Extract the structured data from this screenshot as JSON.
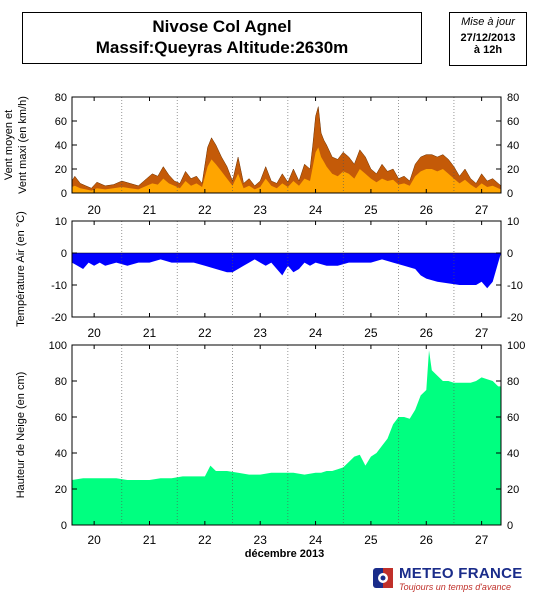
{
  "header": {
    "title_line1": "Nivose Col Agnel",
    "title_line2": "Massif:Queyras Altitude:2630m",
    "update_label": "Mise à jour",
    "update_date": "27/12/2013",
    "update_time": "à 12h"
  },
  "brand": {
    "name": "METEO FRANCE",
    "slogan": "Toujours un temps d'avance",
    "logo_icon": "meteo-france-logo-icon"
  },
  "colors": {
    "wind_max": "#c45a08",
    "wind_mean": "#ffa500",
    "temperature": "#0000ff",
    "snow": "#00ff80"
  },
  "chart_data": [
    {
      "type": "area",
      "ylabel": "Vent moyen et Vent maxi (en km/h)",
      "ylim": [
        0,
        80
      ],
      "yticks": [
        0,
        20,
        40,
        60,
        80
      ],
      "xlim": [
        19.6,
        27.35
      ],
      "x_ticks": [
        20,
        21,
        22,
        23,
        24,
        25,
        26,
        27
      ],
      "x_tick_labels": [
        "20",
        "21",
        "22",
        "23",
        "24",
        "25",
        "26",
        "27"
      ],
      "grid": "vertical dotted",
      "series": [
        {
          "role": "max",
          "x": [
            19.6,
            19.65,
            19.75,
            19.85,
            19.95,
            20.05,
            20.2,
            20.35,
            20.5,
            20.65,
            20.8,
            20.95,
            21.05,
            21.15,
            21.25,
            21.35,
            21.45,
            21.55,
            21.65,
            21.75,
            21.85,
            21.95,
            22.05,
            22.12,
            22.2,
            22.3,
            22.4,
            22.5,
            22.6,
            22.7,
            22.8,
            22.9,
            23.0,
            23.1,
            23.2,
            23.3,
            23.4,
            23.5,
            23.6,
            23.7,
            23.8,
            23.9,
            23.95,
            24.0,
            24.05,
            24.1,
            24.15,
            24.2,
            24.3,
            24.4,
            24.5,
            24.6,
            24.7,
            24.8,
            24.9,
            25.0,
            25.1,
            25.2,
            25.3,
            25.4,
            25.5,
            25.6,
            25.7,
            25.8,
            25.9,
            26.0,
            26.1,
            26.2,
            26.3,
            26.4,
            26.5,
            26.6,
            26.7,
            26.8,
            26.9,
            27.0,
            27.1,
            27.2,
            27.3,
            27.35
          ],
          "values": [
            10,
            14,
            8,
            6,
            4,
            9,
            6,
            7,
            10,
            8,
            6,
            12,
            16,
            14,
            22,
            15,
            10,
            8,
            18,
            12,
            14,
            8,
            38,
            46,
            40,
            30,
            22,
            10,
            30,
            8,
            12,
            6,
            10,
            22,
            10,
            8,
            16,
            9,
            20,
            10,
            24,
            20,
            40,
            64,
            72,
            50,
            44,
            40,
            30,
            28,
            34,
            30,
            24,
            36,
            30,
            20,
            16,
            24,
            18,
            20,
            12,
            14,
            10,
            24,
            30,
            32,
            32,
            30,
            32,
            28,
            22,
            14,
            20,
            12,
            8,
            16,
            10,
            12,
            8,
            6
          ]
        },
        {
          "role": "mean",
          "x": [
            19.6,
            19.65,
            19.75,
            19.85,
            19.95,
            20.05,
            20.2,
            20.35,
            20.5,
            20.65,
            20.8,
            20.95,
            21.05,
            21.15,
            21.25,
            21.35,
            21.45,
            21.55,
            21.65,
            21.75,
            21.85,
            21.95,
            22.05,
            22.12,
            22.2,
            22.3,
            22.4,
            22.5,
            22.6,
            22.7,
            22.8,
            22.9,
            23.0,
            23.1,
            23.2,
            23.3,
            23.4,
            23.5,
            23.6,
            23.7,
            23.8,
            23.9,
            23.95,
            24.0,
            24.05,
            24.1,
            24.15,
            24.2,
            24.3,
            24.4,
            24.5,
            24.6,
            24.7,
            24.8,
            24.9,
            25.0,
            25.1,
            25.2,
            25.3,
            25.4,
            25.5,
            25.6,
            25.7,
            25.8,
            25.9,
            26.0,
            26.1,
            26.2,
            26.3,
            26.4,
            26.5,
            26.6,
            26.7,
            26.8,
            26.9,
            27.0,
            27.1,
            27.2,
            27.3,
            27.35
          ],
          "values": [
            5,
            6,
            4,
            3,
            2,
            4,
            3,
            4,
            5,
            4,
            3,
            6,
            8,
            7,
            12,
            8,
            6,
            4,
            10,
            6,
            8,
            5,
            22,
            28,
            24,
            18,
            12,
            6,
            16,
            4,
            6,
            3,
            5,
            12,
            6,
            4,
            8,
            5,
            10,
            6,
            12,
            10,
            22,
            34,
            38,
            30,
            26,
            22,
            16,
            14,
            18,
            16,
            12,
            20,
            16,
            12,
            9,
            12,
            10,
            11,
            7,
            8,
            6,
            14,
            18,
            20,
            20,
            18,
            20,
            16,
            12,
            8,
            11,
            7,
            4,
            8,
            5,
            6,
            4,
            3
          ]
        }
      ]
    },
    {
      "type": "area",
      "ylabel": "Température Air (en °C)",
      "ylim": [
        -20,
        10
      ],
      "yticks": [
        -20,
        -10,
        0,
        10
      ],
      "xlim": [
        19.6,
        27.35
      ],
      "x_ticks": [
        20,
        21,
        22,
        23,
        24,
        25,
        26,
        27
      ],
      "x_tick_labels": [
        "20",
        "21",
        "22",
        "23",
        "24",
        "25",
        "26",
        "27"
      ],
      "grid": "vertical dotted",
      "x": [
        19.6,
        19.7,
        19.8,
        19.9,
        20.0,
        20.1,
        20.2,
        20.4,
        20.6,
        20.8,
        21.0,
        21.2,
        21.4,
        21.6,
        21.8,
        22.0,
        22.2,
        22.4,
        22.5,
        22.6,
        22.7,
        22.8,
        22.9,
        23.0,
        23.1,
        23.2,
        23.3,
        23.4,
        23.5,
        23.6,
        23.7,
        23.8,
        23.9,
        24.0,
        24.2,
        24.4,
        24.6,
        24.8,
        25.0,
        25.2,
        25.4,
        25.6,
        25.8,
        25.9,
        26.0,
        26.2,
        26.4,
        26.6,
        26.8,
        26.9,
        27.0,
        27.1,
        27.2,
        27.3,
        27.35
      ],
      "values": [
        -3,
        -4,
        -5,
        -3,
        -4,
        -3,
        -4,
        -3,
        -4,
        -3,
        -3,
        -2,
        -3,
        -3,
        -3,
        -4,
        -5,
        -6,
        -6,
        -5,
        -4,
        -3,
        -2,
        -3,
        -4,
        -3,
        -5,
        -7,
        -4,
        -6,
        -5,
        -3,
        -4,
        -3,
        -4,
        -4,
        -3,
        -3,
        -3,
        -2,
        -3,
        -4,
        -5,
        -7,
        -8,
        -9,
        -9.5,
        -10,
        -10,
        -10,
        -9,
        -11,
        -9,
        -3,
        0
      ]
    },
    {
      "type": "area",
      "ylabel": "Hauteur de Neige (en cm)",
      "xlabel": "décembre 2013",
      "ylim": [
        0,
        100
      ],
      "yticks": [
        0,
        20,
        40,
        60,
        80,
        100
      ],
      "xlim": [
        19.6,
        27.35
      ],
      "x_ticks": [
        20,
        21,
        22,
        23,
        24,
        25,
        26,
        27
      ],
      "x_tick_labels": [
        "20",
        "21",
        "22",
        "23",
        "24",
        "25",
        "26",
        "27"
      ],
      "grid": "vertical dotted",
      "x": [
        19.6,
        19.8,
        20.0,
        20.2,
        20.4,
        20.6,
        20.8,
        21.0,
        21.2,
        21.4,
        21.6,
        21.8,
        22.0,
        22.1,
        22.2,
        22.4,
        22.6,
        22.8,
        23.0,
        23.2,
        23.4,
        23.6,
        23.8,
        24.0,
        24.1,
        24.2,
        24.3,
        24.4,
        24.5,
        24.6,
        24.7,
        24.8,
        24.9,
        25.0,
        25.1,
        25.2,
        25.3,
        25.4,
        25.5,
        25.6,
        25.7,
        25.8,
        25.9,
        26.0,
        26.05,
        26.1,
        26.2,
        26.3,
        26.4,
        26.5,
        26.6,
        26.7,
        26.8,
        26.9,
        27.0,
        27.1,
        27.2,
        27.3,
        27.35
      ],
      "values": [
        25,
        26,
        26,
        26,
        26,
        25,
        25,
        25,
        26,
        26,
        27,
        27,
        27,
        33,
        30,
        30,
        29,
        28,
        28,
        29,
        29,
        29,
        28,
        29,
        29,
        30,
        30,
        31,
        32,
        35,
        38,
        39,
        33,
        38,
        40,
        44,
        48,
        56,
        60,
        60,
        59,
        64,
        72,
        75,
        97,
        86,
        83,
        80,
        80,
        79,
        79,
        79,
        79,
        80,
        82,
        81,
        80,
        77,
        77
      ]
    }
  ]
}
